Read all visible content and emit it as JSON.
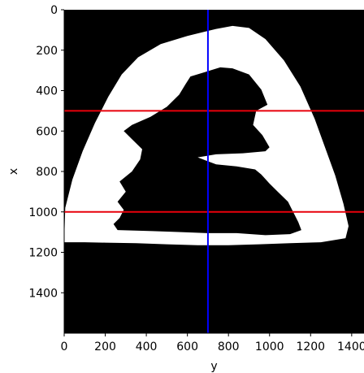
{
  "chart_data": {
    "type": "image",
    "title": "",
    "xlabel": "y",
    "ylabel": "x",
    "xlim": [
      0,
      1460
    ],
    "ylim": [
      1600,
      0
    ],
    "x_ticks": [
      0,
      200,
      400,
      600,
      800,
      1000,
      1200,
      1400
    ],
    "y_ticks": [
      0,
      200,
      400,
      600,
      800,
      1000,
      1200,
      1400
    ],
    "image": {
      "description": "binary mask image",
      "background_color": "#000000",
      "foreground_color": "#ffffff",
      "outer_region": [
        [
          0,
          1150
        ],
        [
          5,
          980
        ],
        [
          40,
          840
        ],
        [
          90,
          700
        ],
        [
          150,
          560
        ],
        [
          215,
          430
        ],
        [
          280,
          320
        ],
        [
          360,
          235
        ],
        [
          470,
          170
        ],
        [
          600,
          130
        ],
        [
          740,
          95
        ],
        [
          820,
          80
        ],
        [
          900,
          90
        ],
        [
          980,
          145
        ],
        [
          1070,
          250
        ],
        [
          1150,
          380
        ],
        [
          1220,
          540
        ],
        [
          1270,
          680
        ],
        [
          1320,
          820
        ],
        [
          1360,
          960
        ],
        [
          1385,
          1070
        ],
        [
          1370,
          1130
        ],
        [
          1250,
          1150
        ],
        [
          1100,
          1155
        ],
        [
          950,
          1160
        ],
        [
          800,
          1165
        ],
        [
          650,
          1165
        ],
        [
          500,
          1160
        ],
        [
          350,
          1155
        ],
        [
          200,
          1152
        ],
        [
          100,
          1150
        ]
      ],
      "inner_region": [
        [
          615,
          330
        ],
        [
          680,
          310
        ],
        [
          760,
          285
        ],
        [
          820,
          290
        ],
        [
          900,
          320
        ],
        [
          960,
          395
        ],
        [
          990,
          470
        ],
        [
          935,
          500
        ],
        [
          920,
          570
        ],
        [
          965,
          620
        ],
        [
          1000,
          680
        ],
        [
          980,
          700
        ],
        [
          870,
          710
        ],
        [
          740,
          715
        ],
        [
          650,
          730
        ],
        [
          740,
          765
        ],
        [
          840,
          775
        ],
        [
          930,
          790
        ],
        [
          960,
          815
        ],
        [
          1000,
          860
        ],
        [
          1040,
          900
        ],
        [
          1090,
          950
        ],
        [
          1115,
          1000
        ],
        [
          1140,
          1050
        ],
        [
          1155,
          1090
        ],
        [
          1100,
          1110
        ],
        [
          980,
          1115
        ],
        [
          840,
          1105
        ],
        [
          700,
          1105
        ],
        [
          570,
          1100
        ],
        [
          430,
          1095
        ],
        [
          260,
          1090
        ],
        [
          240,
          1060
        ],
        [
          270,
          1030
        ],
        [
          290,
          990
        ],
        [
          260,
          950
        ],
        [
          300,
          900
        ],
        [
          270,
          850
        ],
        [
          330,
          800
        ],
        [
          370,
          740
        ],
        [
          380,
          690
        ],
        [
          330,
          640
        ],
        [
          290,
          600
        ],
        [
          330,
          570
        ],
        [
          420,
          530
        ],
        [
          500,
          480
        ],
        [
          560,
          420
        ],
        [
          590,
          370
        ]
      ]
    },
    "hlines": [
      {
        "y": 500,
        "color": "#e8000b"
      },
      {
        "y": 1000,
        "color": "#e8000b"
      }
    ],
    "vlines": [
      {
        "x": 700,
        "color": "#0000ff"
      }
    ]
  }
}
